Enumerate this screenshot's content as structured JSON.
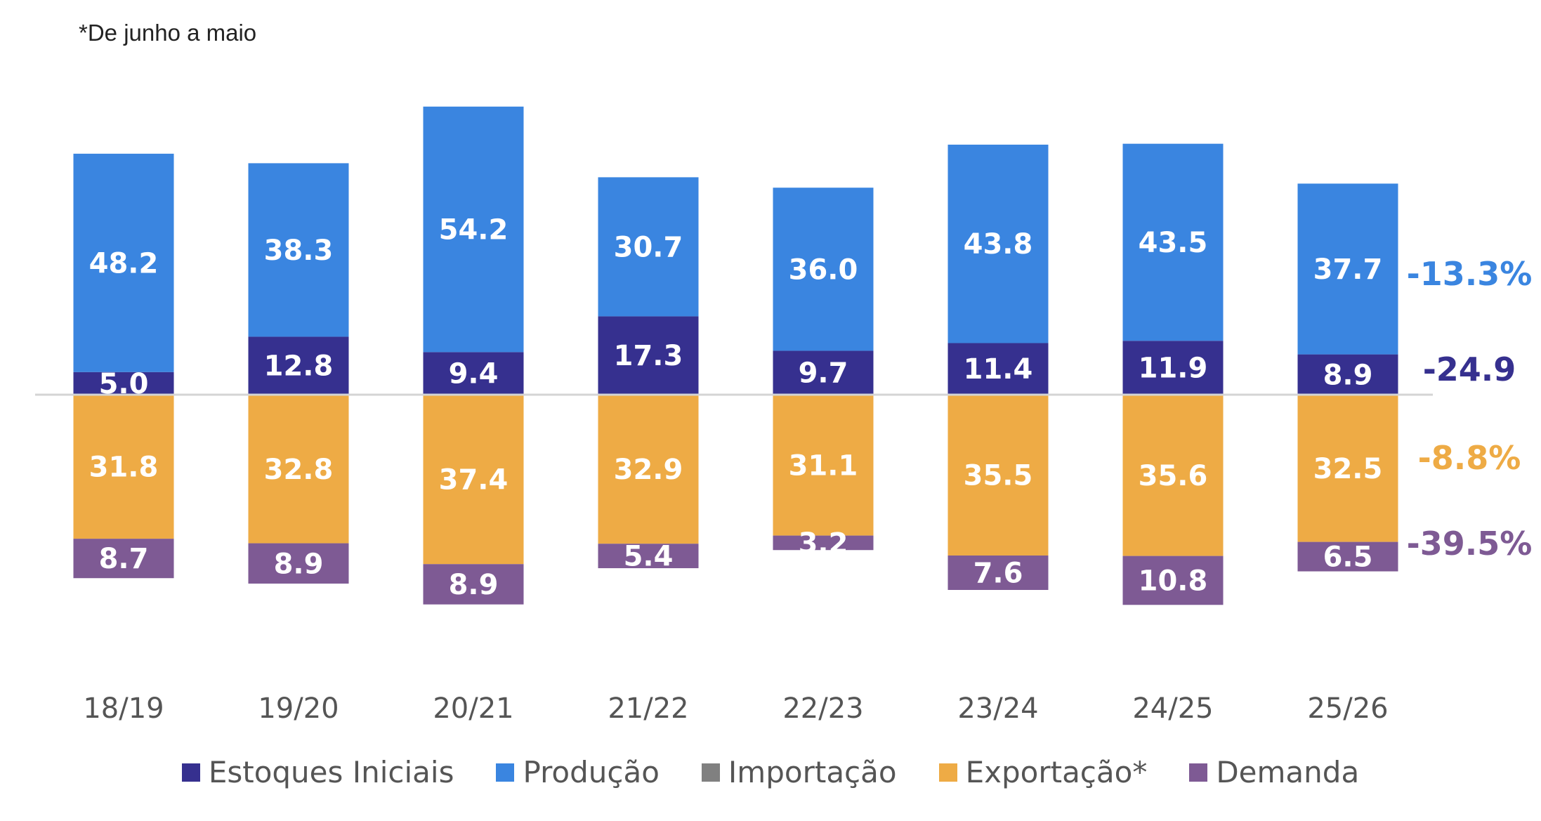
{
  "note": "*De junho a maio",
  "chart_data": {
    "type": "bar",
    "stacked": true,
    "diverging": true,
    "categories": [
      "18/19",
      "19/20",
      "20/21",
      "21/22",
      "22/23",
      "23/24",
      "24/25",
      "25/26"
    ],
    "series": [
      {
        "name": "Estoques Iniciais",
        "color": "#36308f",
        "direction": "up",
        "values": [
          5.0,
          12.8,
          9.4,
          17.3,
          9.7,
          11.4,
          11.9,
          8.9
        ],
        "labels": [
          "5.0",
          "12.8",
          "9.4",
          "17.3",
          "9.7",
          "11.4",
          "11.9",
          "8.9"
        ]
      },
      {
        "name": "Produção",
        "color": "#3a85e0",
        "direction": "up",
        "values": [
          48.2,
          38.3,
          54.2,
          30.7,
          36.0,
          43.8,
          43.5,
          37.7
        ],
        "labels": [
          "48.2",
          "38.3",
          "54.2",
          "30.7",
          "36.0",
          "43.8",
          "43.5",
          "37.7"
        ]
      },
      {
        "name": "Importação",
        "color": "#808080",
        "direction": "up",
        "values": [
          0,
          0,
          0,
          0,
          0,
          0,
          0,
          0
        ],
        "labels": [
          "",
          "",
          "",
          "",
          "",
          "",
          "",
          ""
        ]
      },
      {
        "name": "Exportação*",
        "color": "#eeab45",
        "direction": "down",
        "values": [
          31.8,
          32.8,
          37.4,
          32.9,
          31.1,
          35.5,
          35.6,
          32.5
        ],
        "labels": [
          "31.8",
          "32.8",
          "37.4",
          "32.9",
          "31.1",
          "35.5",
          "35.6",
          "32.5"
        ]
      },
      {
        "name": "Demanda",
        "color": "#7e5a94",
        "direction": "down",
        "values": [
          8.7,
          8.9,
          8.9,
          5.4,
          3.2,
          7.6,
          10.8,
          6.5
        ],
        "labels": [
          "8.7",
          "8.9",
          "8.9",
          "5.4",
          "3.2",
          "7.6",
          "10.8",
          "6.5"
        ]
      }
    ],
    "annotations": [
      {
        "text": "-13.3%",
        "series": "Produção",
        "color": "#3a85e0"
      },
      {
        "text": "-24.9",
        "series": "Estoques Iniciais",
        "color": "#36308f"
      },
      {
        "text": "-8.8%",
        "series": "Exportação*",
        "color": "#eeab45"
      },
      {
        "text": "-39.5%",
        "series": "Demanda",
        "color": "#7e5a94"
      }
    ],
    "legend_position": "bottom",
    "grid": false
  }
}
